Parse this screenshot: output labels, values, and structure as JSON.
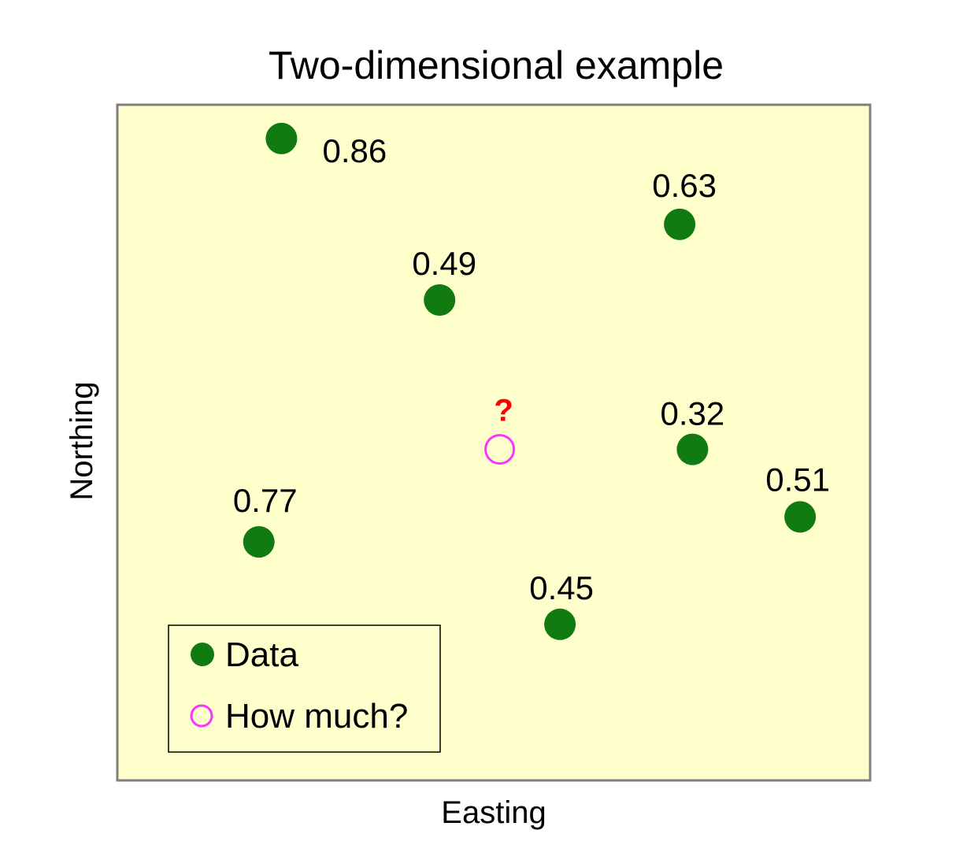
{
  "chart_data": {
    "type": "scatter",
    "title": "Two-dimensional example",
    "xlabel": "Easting",
    "ylabel": "Northing",
    "xlim": [
      0,
      100
    ],
    "ylim": [
      0,
      100
    ],
    "grid": false,
    "axis_ticks": false,
    "background": "#ffffcc",
    "series": [
      {
        "name": "Data",
        "color": "#117a11",
        "marker": "filled-circle",
        "points": [
          {
            "x": 21.8,
            "y": 95.0,
            "label": "0.86"
          },
          {
            "x": 74.7,
            "y": 82.3,
            "label": "0.63"
          },
          {
            "x": 42.8,
            "y": 71.1,
            "label": "0.49"
          },
          {
            "x": 76.4,
            "y": 49.0,
            "label": "0.32"
          },
          {
            "x": 90.7,
            "y": 39.0,
            "label": "0.51"
          },
          {
            "x": 18.8,
            "y": 35.3,
            "label": "0.77"
          },
          {
            "x": 58.8,
            "y": 23.1,
            "label": "0.45"
          }
        ]
      },
      {
        "name": "How much?",
        "color": "#ff33ff",
        "marker": "open-circle",
        "points": [
          {
            "x": 50.8,
            "y": 49.0,
            "label": "?"
          }
        ]
      }
    ],
    "legend": {
      "position": "bottom-left",
      "entries": [
        "Data",
        "How much?"
      ]
    }
  }
}
